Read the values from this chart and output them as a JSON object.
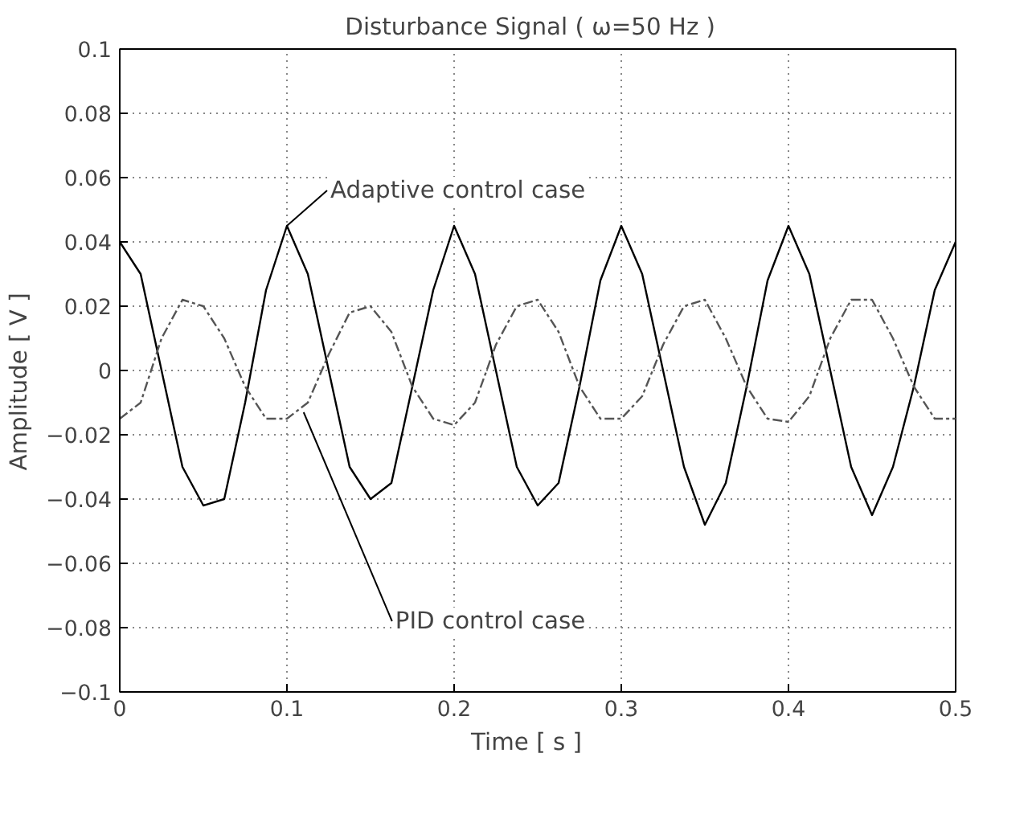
{
  "chart_data": {
    "type": "line",
    "title": "Disturbance Signal   ( ω=50 Hz )",
    "xlabel": "Time    [ s ]",
    "ylabel": "Amplitude    [ V ]",
    "x": [
      0,
      0.0125,
      0.025,
      0.0375,
      0.05,
      0.0625,
      0.075,
      0.0875,
      0.1,
      0.1125,
      0.125,
      0.1375,
      0.15,
      0.1625,
      0.175,
      0.1875,
      0.2,
      0.2125,
      0.225,
      0.2375,
      0.25,
      0.2625,
      0.275,
      0.2875,
      0.3,
      0.3125,
      0.325,
      0.3375,
      0.35,
      0.3625,
      0.375,
      0.3875,
      0.4,
      0.4125,
      0.425,
      0.4375,
      0.45,
      0.4625,
      0.475,
      0.4875,
      0.5
    ],
    "series": [
      {
        "color": "#000000",
        "line_style": "solid",
        "values": [
          0.04,
          0.03,
          0.0,
          -0.03,
          -0.042,
          -0.04,
          -0.01,
          0.025,
          0.045,
          0.03,
          0.0,
          -0.03,
          -0.04,
          -0.035,
          -0.005,
          0.025,
          0.045,
          0.03,
          0.0,
          -0.03,
          -0.042,
          -0.035,
          -0.005,
          0.028,
          0.045,
          0.03,
          0.0,
          -0.03,
          -0.048,
          -0.035,
          -0.005,
          0.028,
          0.045,
          0.03,
          0.0,
          -0.03,
          -0.045,
          -0.03,
          -0.005,
          0.025,
          0.04
        ]
      },
      {
        "color": "#555555",
        "line_style": "dashed",
        "values": [
          -0.015,
          -0.01,
          0.01,
          0.022,
          0.02,
          0.01,
          -0.005,
          -0.015,
          -0.015,
          -0.01,
          0.005,
          0.018,
          0.02,
          0.012,
          -0.005,
          -0.015,
          -0.017,
          -0.01,
          0.008,
          0.02,
          0.022,
          0.012,
          -0.005,
          -0.015,
          -0.015,
          -0.008,
          0.008,
          0.02,
          0.022,
          0.01,
          -0.005,
          -0.015,
          -0.016,
          -0.008,
          0.01,
          0.022,
          0.022,
          0.01,
          -0.005,
          -0.015,
          -0.015
        ]
      }
    ],
    "annotations": [
      {
        "text": "Adaptive control case",
        "x": 0.1,
        "y": 0.045
      },
      {
        "text": "PID control case",
        "x": 0.11,
        "y": -0.013
      }
    ],
    "xlim": [
      0,
      0.5
    ],
    "xticks": [
      0,
      0.1,
      0.2,
      0.3,
      0.4,
      0.5
    ],
    "ylim": [
      -0.1,
      0.1
    ],
    "yticks": [
      -0.1,
      -0.08,
      -0.06,
      -0.04,
      -0.02,
      0,
      0.02,
      0.04,
      0.06,
      0.08,
      0.1
    ],
    "grid": true
  }
}
